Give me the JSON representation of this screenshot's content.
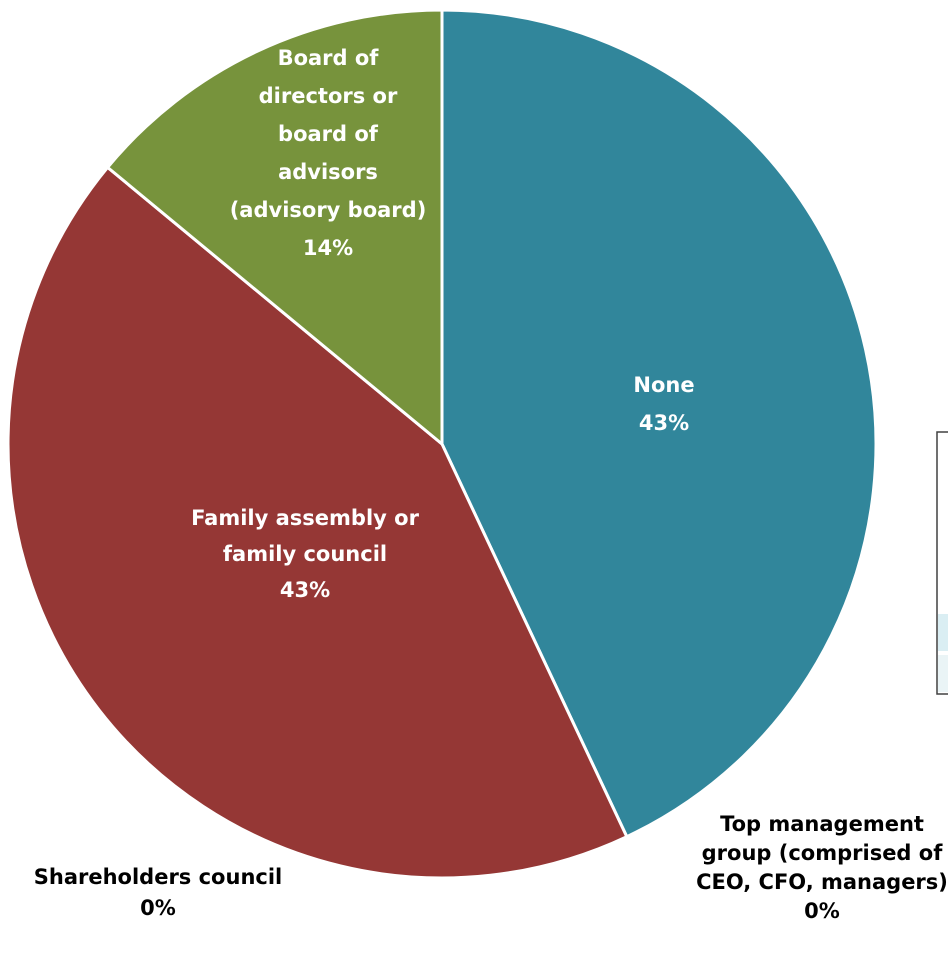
{
  "chart_data": {
    "type": "pie",
    "title": "",
    "slices": [
      {
        "name": "None",
        "value": 43,
        "label": [
          "None",
          "43%"
        ],
        "color": "#31869b"
      },
      {
        "name": "Top management group (comprised of CEO, CFO, managers)",
        "value": 0,
        "label": [
          "Top management",
          "group (comprised of",
          "CEO, CFO, managers)",
          "0%"
        ],
        "color": "#8064a2"
      },
      {
        "name": "Shareholders council",
        "value": 0,
        "label": [
          "Shareholders council",
          "0%"
        ],
        "color": "#4f81bd"
      },
      {
        "name": "Family assembly or family council",
        "value": 43,
        "label": [
          "Family assembly or",
          "family council",
          "43%"
        ],
        "color": "#953735"
      },
      {
        "name": "Board of directors or board of advisors (advisory board)",
        "value": 14,
        "label": [
          "Board of",
          "directors or",
          "board of",
          "advisors",
          "(advisory board)",
          "14%"
        ],
        "color": "#77933c"
      }
    ]
  }
}
